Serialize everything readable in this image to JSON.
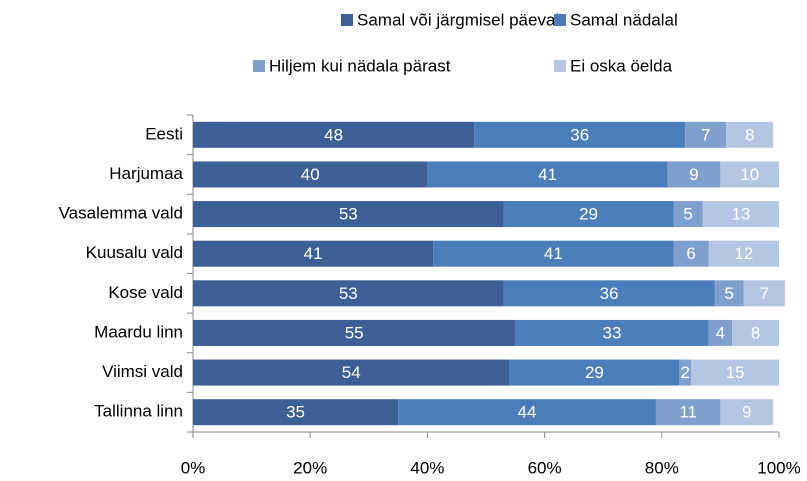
{
  "chart_data": {
    "type": "stacked_barh",
    "categories": [
      "Eesti",
      "Harjumaa",
      "Vasalemma vald",
      "Kuusalu vald",
      "Kose vald",
      "Maardu linn",
      "Viimsi vald",
      "Tallinna linn"
    ],
    "series": [
      {
        "name": "Samal või järgmisel päeval",
        "color": "#3c5f95",
        "values": [
          48,
          40,
          53,
          41,
          53,
          55,
          54,
          35
        ]
      },
      {
        "name": "Samal nädalal",
        "color": "#4a7dba",
        "values": [
          36,
          41,
          29,
          41,
          36,
          33,
          29,
          44
        ]
      },
      {
        "name": "Hiljem kui nädala pärast",
        "color": "#7f9fcc",
        "values": [
          7,
          9,
          5,
          6,
          5,
          4,
          2,
          11
        ]
      },
      {
        "name": "Ei oska öelda",
        "color": "#b5c6e2",
        "values": [
          8,
          10,
          13,
          12,
          7,
          8,
          15,
          9
        ]
      }
    ],
    "xlim": [
      0,
      100
    ],
    "xticks": [
      {
        "value": 0,
        "label": "0%"
      },
      {
        "value": 20,
        "label": "20%"
      },
      {
        "value": 40,
        "label": "40%"
      },
      {
        "value": 60,
        "label": "60%"
      },
      {
        "value": 80,
        "label": "80%"
      },
      {
        "value": 100,
        "label": "100%"
      }
    ],
    "grid": false
  }
}
